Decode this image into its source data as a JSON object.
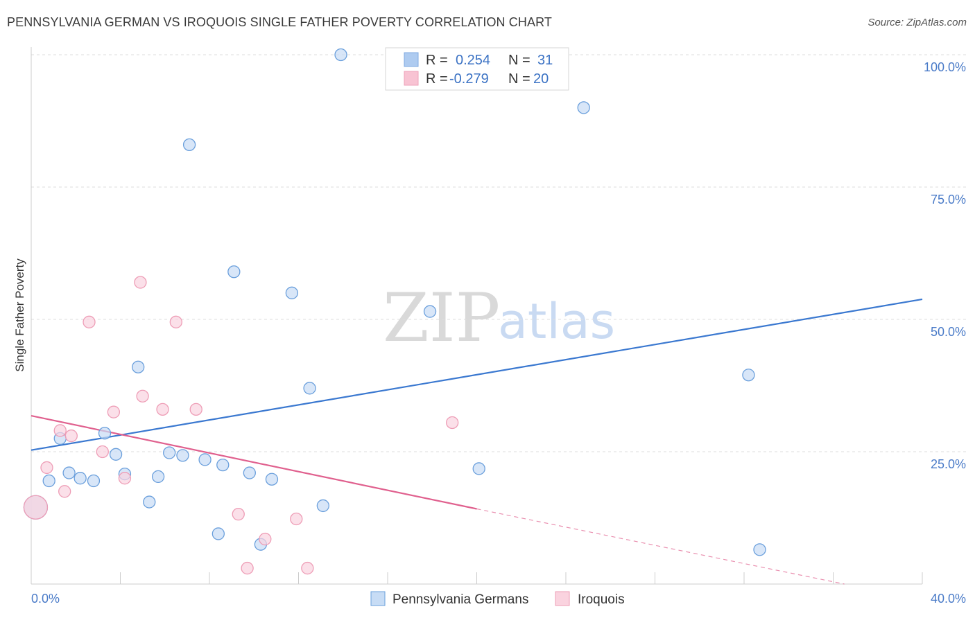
{
  "header": {
    "title": "PENNSYLVANIA GERMAN VS IROQUOIS SINGLE FATHER POVERTY CORRELATION CHART",
    "source": "Source: ZipAtlas.com"
  },
  "watermark": {
    "zip": "ZIP",
    "atlas": "atlas"
  },
  "legend": {
    "r_label": "R =",
    "n_label": "N =",
    "rows": [
      {
        "r": "0.254",
        "n": "31",
        "color": "#aecbf0"
      },
      {
        "r": "-0.279",
        "n": "20",
        "color": "#f8c3d3"
      }
    ]
  },
  "chart_data": {
    "type": "scatter",
    "title": "PENNSYLVANIA GERMAN VS IROQUOIS SINGLE FATHER POVERTY CORRELATION CHART",
    "xlabel": "",
    "ylabel": "Single Father Poverty",
    "xlim": [
      0,
      40
    ],
    "ylim": [
      0,
      105
    ],
    "x_tick_labels": [
      "0.0%",
      "40.0%"
    ],
    "y_ticks": [
      25,
      50,
      75,
      100
    ],
    "y_tick_labels": [
      "25.0%",
      "50.0%",
      "75.0%",
      "100.0%"
    ],
    "grid": true,
    "series": [
      {
        "name": "Pennsylvania Germans",
        "color": "#3a78d0",
        "fill": "#c7dcf5",
        "stroke": "#6a9fdc",
        "points": [
          [
            0.8,
            19.5
          ],
          [
            1.3,
            27.5
          ],
          [
            1.7,
            21
          ],
          [
            2.2,
            20
          ],
          [
            2.8,
            19.5
          ],
          [
            3.3,
            28.5
          ],
          [
            3.8,
            24.5
          ],
          [
            4.2,
            20.8
          ],
          [
            4.8,
            41
          ],
          [
            5.3,
            15.5
          ],
          [
            5.7,
            20.3
          ],
          [
            6.2,
            24.8
          ],
          [
            6.8,
            24.3
          ],
          [
            7.1,
            83
          ],
          [
            7.8,
            23.5
          ],
          [
            8.4,
            9.5
          ],
          [
            8.6,
            22.5
          ],
          [
            9.1,
            59
          ],
          [
            9.8,
            21
          ],
          [
            10.3,
            7.5
          ],
          [
            10.8,
            19.8
          ],
          [
            11.7,
            55
          ],
          [
            12.5,
            37
          ],
          [
            13.1,
            14.8
          ],
          [
            13.9,
            100
          ],
          [
            17.9,
            51.5
          ],
          [
            20.1,
            21.8
          ],
          [
            24.8,
            90
          ],
          [
            32.2,
            39.5
          ],
          [
            32.7,
            6.5
          ],
          [
            0.2,
            14.5
          ]
        ],
        "trend": [
          [
            0,
            25.3
          ],
          [
            40,
            53.8
          ]
        ]
      },
      {
        "name": "Iroquois",
        "color": "#e0608e",
        "fill": "#fad3df",
        "stroke": "#ee9db6",
        "points": [
          [
            0.7,
            22
          ],
          [
            1.3,
            29
          ],
          [
            1.5,
            17.5
          ],
          [
            1.8,
            28
          ],
          [
            2.6,
            49.5
          ],
          [
            3.2,
            25
          ],
          [
            3.7,
            32.5
          ],
          [
            4.2,
            20
          ],
          [
            4.9,
            57
          ],
          [
            5.0,
            35.5
          ],
          [
            5.9,
            33
          ],
          [
            6.5,
            49.5
          ],
          [
            7.4,
            33
          ],
          [
            9.3,
            13.2
          ],
          [
            9.7,
            3
          ],
          [
            10.5,
            8.5
          ],
          [
            11.9,
            12.3
          ],
          [
            12.4,
            3
          ],
          [
            18.9,
            30.5
          ],
          [
            0.2,
            14.5
          ]
        ],
        "trend": [
          [
            0,
            31.8
          ],
          [
            20,
            14.2
          ]
        ],
        "trend_dashed": [
          [
            20,
            14.2
          ],
          [
            36.5,
            0
          ]
        ]
      }
    ]
  }
}
